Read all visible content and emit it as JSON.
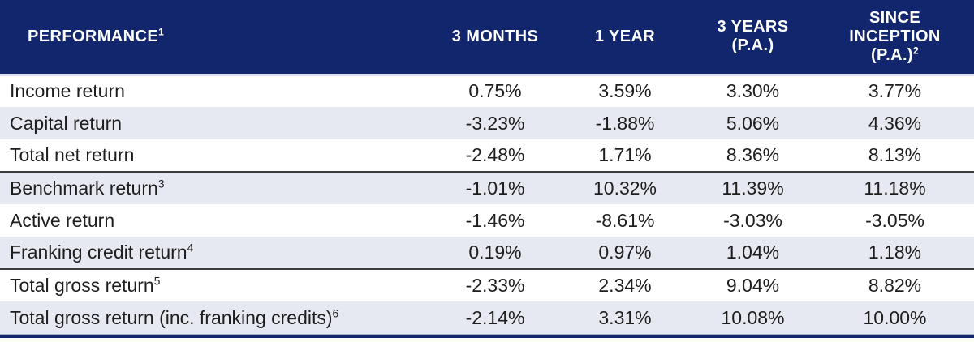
{
  "table": {
    "title": "Performance table",
    "header": {
      "columns": [
        {
          "label": "PERFORMANCE",
          "sup": "1"
        },
        {
          "label": "3 MONTHS",
          "sup": ""
        },
        {
          "label": "1 YEAR",
          "sup": ""
        },
        {
          "label": "3 YEARS (P.A.)",
          "sup": ""
        },
        {
          "label": "SINCE INCEPTION (P.A.)",
          "sup": "2"
        }
      ]
    },
    "rows": [
      {
        "label": "Income return",
        "sup": "",
        "values": [
          "0.75%",
          "3.59%",
          "3.30%",
          "3.77%"
        ],
        "divider_below": false
      },
      {
        "label": "Capital return",
        "sup": "",
        "values": [
          "-3.23%",
          "-1.88%",
          "5.06%",
          "4.36%"
        ],
        "divider_below": false
      },
      {
        "label": "Total net return",
        "sup": "",
        "values": [
          "-2.48%",
          "1.71%",
          "8.36%",
          "8.13%"
        ],
        "divider_below": true
      },
      {
        "label": "Benchmark return",
        "sup": "3",
        "values": [
          "-1.01%",
          "10.32%",
          "11.39%",
          "11.18%"
        ],
        "divider_below": false
      },
      {
        "label": "Active return",
        "sup": "",
        "values": [
          "-1.46%",
          "-8.61%",
          "-3.03%",
          "-3.05%"
        ],
        "divider_below": false
      },
      {
        "label": "Franking credit return",
        "sup": "4",
        "values": [
          "0.19%",
          "0.97%",
          "1.04%",
          "1.18%"
        ],
        "divider_below": true
      },
      {
        "label": "Total gross return",
        "sup": "5",
        "values": [
          "-2.33%",
          "2.34%",
          "9.04%",
          "8.82%"
        ],
        "divider_below": false
      },
      {
        "label": "Total gross return (inc. franking credits)",
        "sup": "6",
        "values": [
          "-2.14%",
          "3.31%",
          "10.08%",
          "10.00%"
        ],
        "divider_below": false
      }
    ],
    "colors": {
      "header_bg": "#12266E",
      "header_text": "#FFFFFF",
      "row_alt_bg": "#E7E9F2",
      "divider": "#3D3D3D",
      "body_text": "#1E1E1E",
      "bottom_bar": "#12266E"
    }
  }
}
